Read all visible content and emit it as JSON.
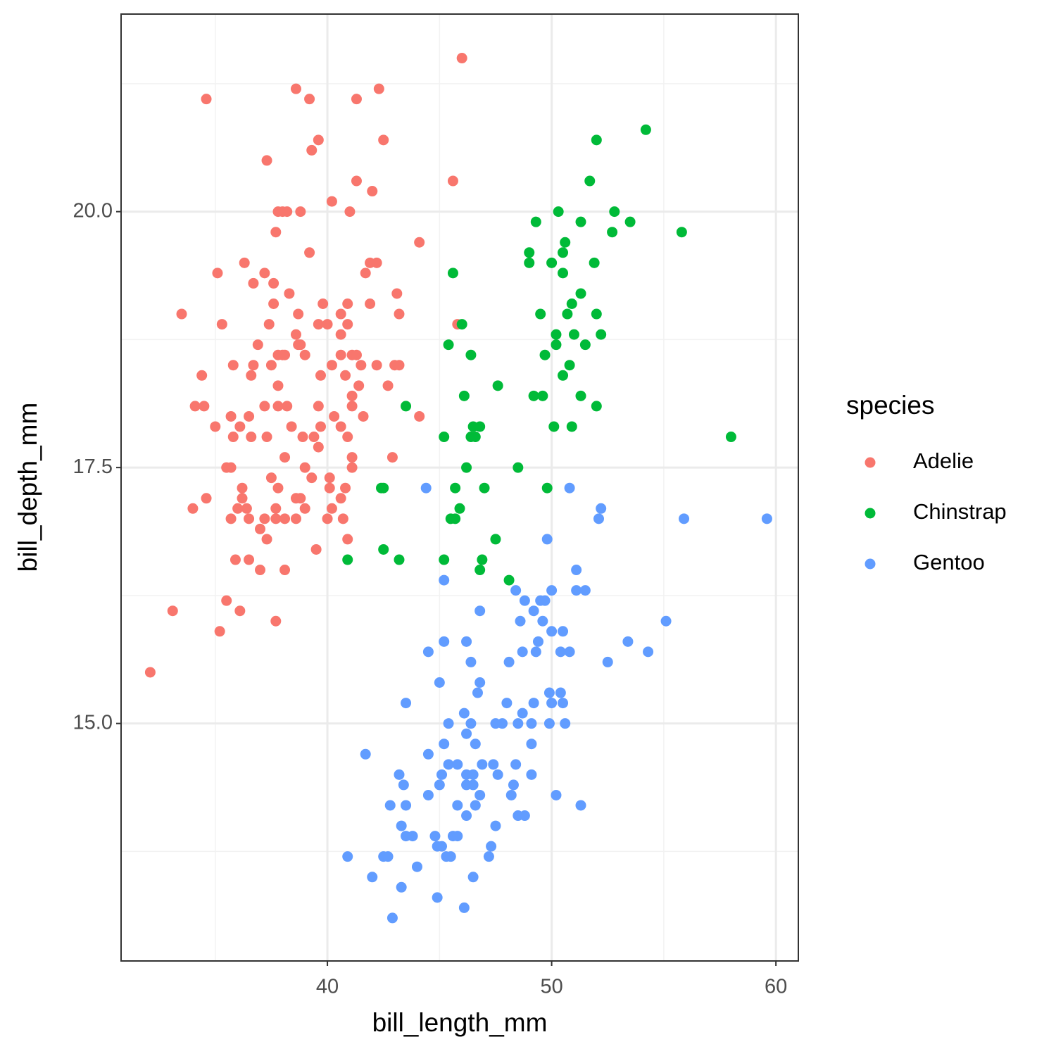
{
  "chart_data": {
    "type": "scatter",
    "xlabel": "bill_length_mm",
    "ylabel": "bill_depth_mm",
    "legend_title": "species",
    "legend": "right",
    "grid": true,
    "xlim": [
      30.8,
      61.0
    ],
    "ylim": [
      12.68,
      21.93
    ],
    "xticks": [
      40,
      50,
      60
    ],
    "yticks": [
      {
        "value": 15,
        "label": "15.0"
      },
      17.5,
      {
        "value": 20,
        "label": "20.0"
      }
    ],
    "series": [
      {
        "name": "Adelie",
        "color": "#F8766D",
        "x": [
          46.0,
          34.6,
          38.6,
          39.2,
          41.3,
          42.3,
          39.6,
          39.3,
          42.5,
          37.3,
          45.6,
          41.3,
          42.0,
          40.2,
          37.8,
          38.0,
          38.2,
          38.8,
          41.0,
          37.7,
          44.1,
          39.2,
          36.3,
          41.9,
          42.2,
          35.1,
          37.2,
          41.7,
          36.7,
          37.6,
          38.3,
          43.1,
          33.5,
          37.6,
          39.8,
          40.9,
          41.9,
          38.7,
          40.6,
          43.2,
          35.3,
          37.4,
          39.6,
          40.0,
          40.9,
          45.8,
          38.6,
          40.6,
          36.9,
          38.7,
          38.8,
          37.8,
          38.0,
          38.1,
          39.0,
          40.6,
          41.1,
          41.3,
          35.8,
          36.7,
          37.5,
          40.2,
          41.5,
          42.2,
          43.0,
          43.2,
          34.4,
          36.6,
          39.7,
          40.8,
          37.8,
          41.4,
          42.7,
          41.1,
          34.1,
          34.5,
          37.2,
          37.8,
          38.2,
          39.6,
          41.1,
          35.7,
          36.5,
          40.3,
          41.6,
          44.1,
          35.0,
          36.1,
          38.4,
          39.7,
          40.6,
          35.8,
          36.6,
          37.3,
          38.9,
          39.4,
          40.9,
          39.6,
          38.1,
          41.1,
          42.9,
          35.5,
          35.7,
          39.0,
          41.1,
          37.5,
          39.3,
          40.1,
          36.2,
          37.8,
          40.1,
          40.8,
          34.6,
          36.2,
          38.6,
          38.8,
          40.6,
          34.0,
          36.0,
          36.4,
          37.7,
          39.0,
          40.2,
          35.7,
          36.5,
          37.2,
          37.7,
          38.1,
          38.6,
          40.0,
          40.7,
          37.0,
          37.3,
          40.9,
          39.5,
          35.9,
          36.5,
          37.0,
          38.1,
          35.5,
          33.1,
          36.1,
          37.7,
          35.2,
          32.1
        ],
        "values": [
          21.5,
          21.1,
          21.2,
          21.1,
          21.1,
          21.2,
          20.7,
          20.6,
          20.7,
          20.5,
          20.3,
          20.3,
          20.2,
          20.1,
          20.0,
          20.0,
          20.0,
          20.0,
          20.0,
          19.8,
          19.7,
          19.6,
          19.5,
          19.5,
          19.5,
          19.4,
          19.4,
          19.4,
          19.3,
          19.3,
          19.2,
          19.2,
          19.0,
          19.1,
          19.1,
          19.1,
          19.1,
          19.0,
          19.0,
          19.0,
          18.9,
          18.9,
          18.9,
          18.9,
          18.9,
          18.9,
          18.8,
          18.8,
          18.7,
          18.7,
          18.7,
          18.6,
          18.6,
          18.6,
          18.6,
          18.6,
          18.6,
          18.6,
          18.5,
          18.5,
          18.5,
          18.5,
          18.5,
          18.5,
          18.5,
          18.5,
          18.4,
          18.4,
          18.4,
          18.4,
          18.3,
          18.3,
          18.3,
          18.2,
          18.1,
          18.1,
          18.1,
          18.1,
          18.1,
          18.1,
          18.1,
          18.0,
          18.0,
          18.0,
          18.0,
          18.0,
          17.9,
          17.9,
          17.9,
          17.9,
          17.9,
          17.8,
          17.8,
          17.8,
          17.8,
          17.8,
          17.8,
          17.7,
          17.6,
          17.6,
          17.6,
          17.5,
          17.5,
          17.5,
          17.5,
          17.4,
          17.4,
          17.4,
          17.3,
          17.3,
          17.3,
          17.3,
          17.2,
          17.2,
          17.2,
          17.2,
          17.2,
          17.1,
          17.1,
          17.1,
          17.1,
          17.1,
          17.1,
          17.0,
          17.0,
          17.0,
          17.0,
          17.0,
          17.0,
          17.0,
          17.0,
          16.9,
          16.8,
          16.8,
          16.7,
          16.6,
          16.6,
          16.5,
          16.5,
          16.2,
          16.1,
          16.1,
          16.0,
          15.9,
          15.5
        ]
      },
      {
        "name": "Chinstrap",
        "color": "#00BA38",
        "x": [
          54.2,
          52.0,
          51.7,
          50.3,
          52.8,
          49.3,
          51.3,
          53.5,
          52.7,
          55.8,
          50.6,
          49.0,
          50.5,
          49.0,
          50.0,
          51.9,
          45.6,
          50.5,
          51.3,
          50.9,
          49.5,
          50.7,
          52.0,
          46.0,
          50.2,
          51.0,
          52.2,
          45.4,
          50.2,
          51.5,
          46.4,
          49.7,
          50.8,
          50.5,
          47.6,
          46.1,
          49.2,
          49.6,
          51.3,
          43.5,
          52.0,
          46.5,
          46.8,
          50.1,
          50.9,
          45.2,
          46.4,
          46.6,
          58.0,
          46.2,
          48.5,
          42.4,
          42.5,
          45.7,
          47.0,
          49.8,
          45.9,
          45.5,
          45.7,
          47.5,
          42.5,
          40.9,
          43.2,
          45.2,
          46.9,
          46.8,
          48.1
        ],
        "values": [
          20.8,
          20.7,
          20.3,
          20.0,
          20.0,
          19.9,
          19.9,
          19.9,
          19.8,
          19.8,
          19.7,
          19.6,
          19.6,
          19.5,
          19.5,
          19.5,
          19.4,
          19.4,
          19.2,
          19.1,
          19.0,
          19.0,
          19.0,
          18.9,
          18.8,
          18.8,
          18.8,
          18.7,
          18.7,
          18.7,
          18.6,
          18.6,
          18.5,
          18.4,
          18.3,
          18.2,
          18.2,
          18.2,
          18.2,
          18.1,
          18.1,
          17.9,
          17.9,
          17.9,
          17.9,
          17.8,
          17.8,
          17.8,
          17.8,
          17.5,
          17.5,
          17.3,
          17.3,
          17.3,
          17.3,
          17.3,
          17.1,
          17.0,
          17.0,
          16.8,
          16.7,
          16.6,
          16.6,
          16.6,
          16.6,
          16.5,
          16.4
        ]
      },
      {
        "name": "Gentoo",
        "color": "#619CFF",
        "x": [
          44.4,
          50.8,
          52.2,
          52.1,
          55.9,
          59.6,
          49.8,
          51.1,
          48.4,
          50.0,
          51.1,
          51.5,
          45.2,
          48.8,
          49.5,
          49.7,
          46.8,
          49.2,
          48.6,
          49.6,
          55.1,
          50.0,
          50.5,
          45.2,
          46.2,
          49.4,
          53.4,
          44.5,
          48.7,
          49.3,
          50.4,
          50.8,
          54.3,
          46.4,
          48.1,
          52.5,
          46.8,
          45.0,
          46.7,
          49.9,
          50.4,
          43.5,
          48.0,
          49.2,
          50.0,
          50.5,
          46.1,
          48.7,
          45.4,
          46.4,
          47.5,
          47.8,
          48.5,
          49.1,
          49.9,
          50.6,
          46.2,
          45.2,
          46.6,
          49.1,
          41.7,
          44.5,
          45.4,
          45.8,
          46.9,
          47.4,
          48.4,
          43.2,
          45.1,
          46.2,
          46.5,
          47.6,
          49.1,
          43.4,
          45.0,
          46.2,
          46.5,
          48.3,
          44.5,
          46.8,
          48.2,
          50.2,
          42.8,
          43.5,
          45.8,
          46.6,
          51.3,
          46.2,
          48.5,
          48.8,
          43.3,
          47.5,
          43.5,
          43.8,
          44.8,
          45.6,
          45.8,
          44.9,
          45.1,
          47.3,
          40.9,
          42.5,
          42.7,
          45.3,
          45.5,
          47.2,
          44.0,
          42.0,
          46.5,
          43.3,
          44.9,
          46.1,
          42.9
        ],
        "values": [
          17.3,
          17.3,
          17.1,
          17.0,
          17.0,
          17.0,
          16.8,
          16.5,
          16.3,
          16.3,
          16.3,
          16.3,
          16.4,
          16.2,
          16.2,
          16.2,
          16.1,
          16.1,
          16.0,
          16.0,
          16.0,
          15.9,
          15.9,
          15.8,
          15.8,
          15.8,
          15.8,
          15.7,
          15.7,
          15.7,
          15.7,
          15.7,
          15.7,
          15.6,
          15.6,
          15.6,
          15.4,
          15.4,
          15.3,
          15.3,
          15.3,
          15.2,
          15.2,
          15.2,
          15.2,
          15.2,
          15.1,
          15.1,
          15.0,
          15.0,
          15.0,
          15.0,
          15.0,
          15.0,
          15.0,
          15.0,
          14.9,
          14.8,
          14.8,
          14.8,
          14.7,
          14.7,
          14.6,
          14.6,
          14.6,
          14.6,
          14.6,
          14.5,
          14.5,
          14.5,
          14.5,
          14.5,
          14.5,
          14.4,
          14.4,
          14.4,
          14.4,
          14.4,
          14.3,
          14.3,
          14.3,
          14.3,
          14.2,
          14.2,
          14.2,
          14.2,
          14.2,
          14.1,
          14.1,
          14.1,
          14.0,
          14.0,
          13.9,
          13.9,
          13.9,
          13.9,
          13.9,
          13.8,
          13.8,
          13.8,
          13.7,
          13.7,
          13.7,
          13.7,
          13.7,
          13.7,
          13.6,
          13.5,
          13.5,
          13.4,
          13.3,
          13.2,
          13.1
        ]
      }
    ]
  }
}
